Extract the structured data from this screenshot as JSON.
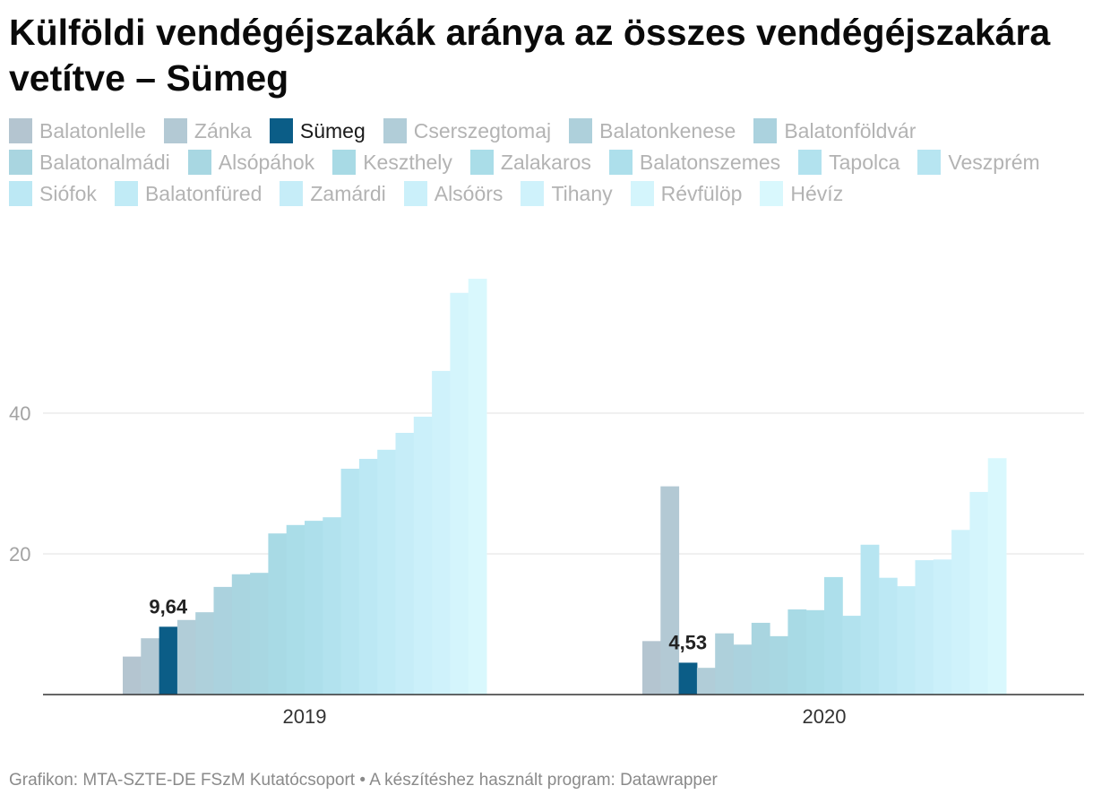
{
  "footer": "Grafikon: MTA-SZTE-DE FSzM Kutatócsoport • A készítéshez használt program: Datawrapper",
  "chart_data": {
    "type": "bar",
    "title": "Külföldi vendégéjszakák aránya az összes vendégéjszakára vetítve – Sümeg",
    "categories": [
      "2019",
      "2020"
    ],
    "ylim": [
      0,
      60
    ],
    "yticks": [
      20,
      40
    ],
    "grid": true,
    "series": [
      {
        "name": "Balatonlelle",
        "color": "#b4c5d0",
        "values": [
          5.4,
          7.6
        ]
      },
      {
        "name": "Zánka",
        "color": "#b3c9d4",
        "values": [
          8.0,
          29.6
        ]
      },
      {
        "name": "Sümeg",
        "color": "#0b5d87",
        "values": [
          9.64,
          4.53
        ],
        "labels": [
          "9,64",
          "4,53"
        ],
        "highlight": true
      },
      {
        "name": "Cserszegtomaj",
        "color": "#b1cdd8",
        "values": [
          10.6,
          3.8
        ]
      },
      {
        "name": "Balatonkenese",
        "color": "#aed0db",
        "values": [
          11.7,
          8.7
        ]
      },
      {
        "name": "Balatonföldvár",
        "color": "#abd2de",
        "values": [
          15.3,
          7.1
        ]
      },
      {
        "name": "Balatonalmádi",
        "color": "#a9d5e0",
        "values": [
          17.1,
          10.2
        ]
      },
      {
        "name": "Alsópáhok",
        "color": "#a8d7e2",
        "values": [
          17.3,
          8.3
        ]
      },
      {
        "name": "Keszthely",
        "color": "#a8dae5",
        "values": [
          22.9,
          12.1
        ]
      },
      {
        "name": "Zalakaros",
        "color": "#aadde8",
        "values": [
          24.1,
          12.0
        ]
      },
      {
        "name": "Balatonszemes",
        "color": "#addfeb",
        "values": [
          24.7,
          16.7
        ]
      },
      {
        "name": "Tapolca",
        "color": "#b2e2ee",
        "values": [
          25.2,
          11.2
        ]
      },
      {
        "name": "Veszprém",
        "color": "#b7e5f1",
        "values": [
          32.1,
          21.3
        ]
      },
      {
        "name": "Siófok",
        "color": "#bce8f4",
        "values": [
          33.5,
          16.6
        ]
      },
      {
        "name": "Balatonfüred",
        "color": "#c1ebf6",
        "values": [
          34.8,
          15.4
        ]
      },
      {
        "name": "Zamárdi",
        "color": "#c6edf8",
        "values": [
          37.2,
          19.1
        ]
      },
      {
        "name": "Alsóörs",
        "color": "#cbf0fa",
        "values": [
          39.5,
          19.2
        ]
      },
      {
        "name": "Tihany",
        "color": "#cff2fb",
        "values": [
          46.0,
          23.4
        ]
      },
      {
        "name": "Révfülöp",
        "color": "#d4f5fc",
        "values": [
          57.1,
          28.8
        ]
      },
      {
        "name": "Hévíz",
        "color": "#d9f8fd",
        "values": [
          59.1,
          33.6
        ]
      }
    ]
  }
}
